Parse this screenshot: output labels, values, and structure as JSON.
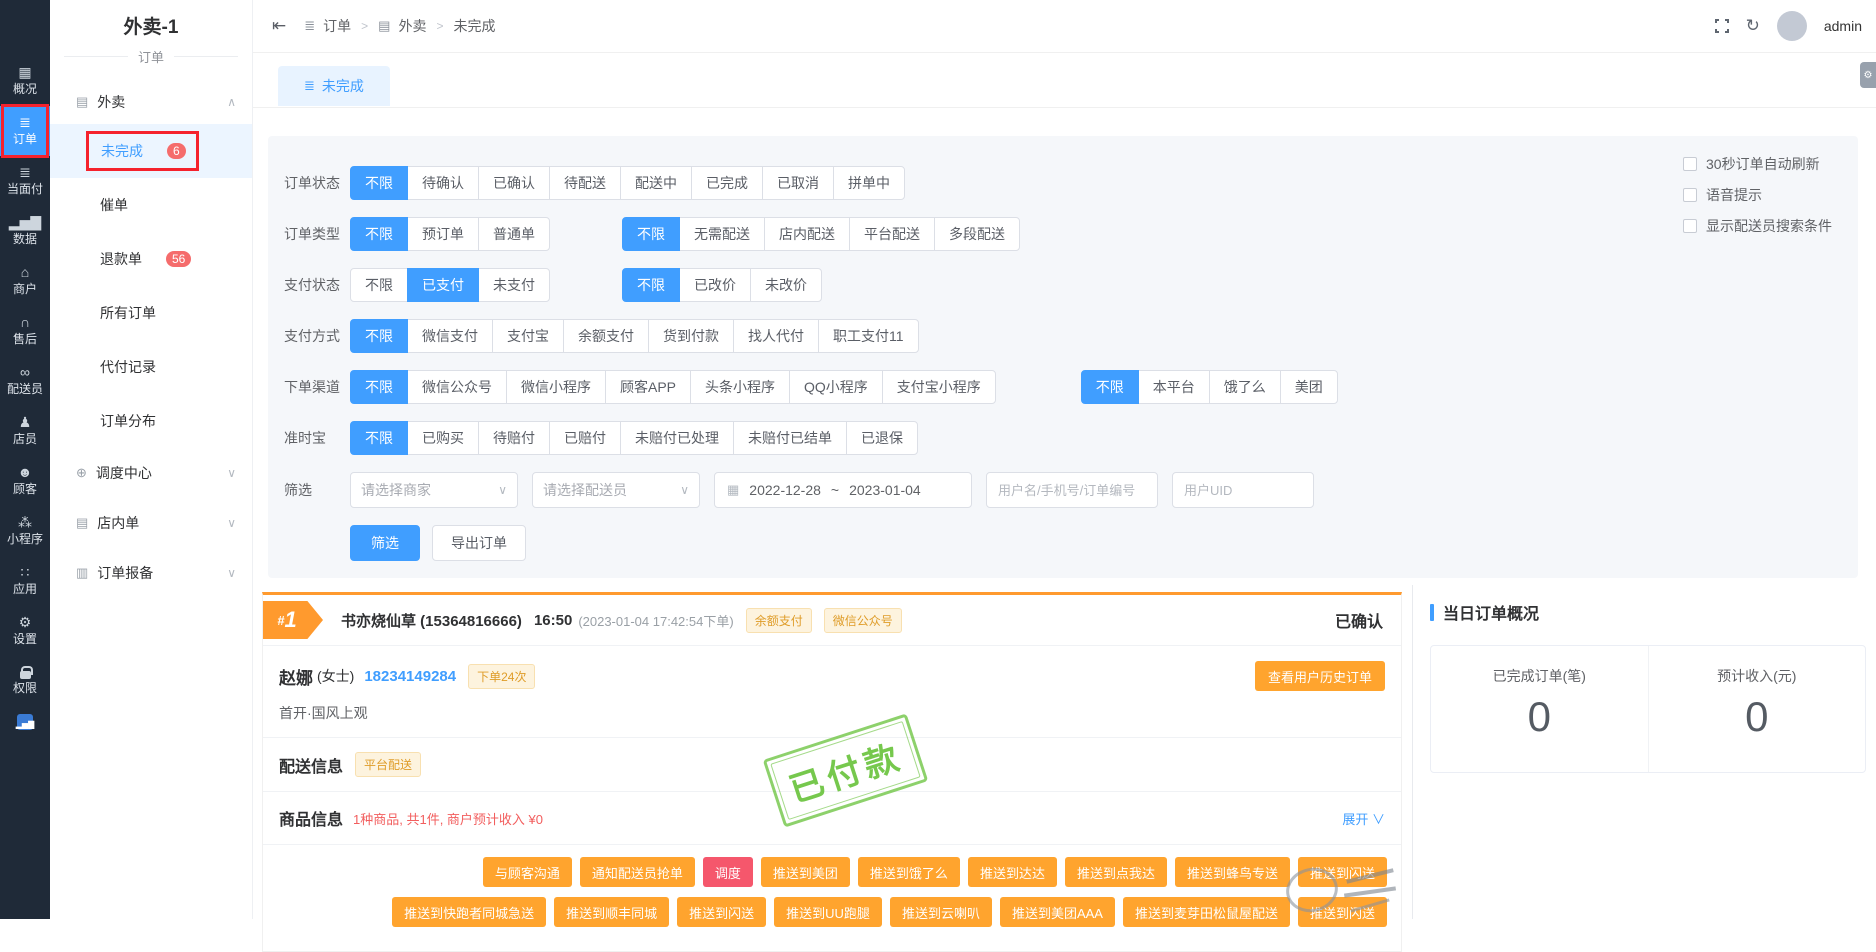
{
  "app": {
    "title": "外卖-1",
    "subtitle": "订单",
    "user": "admin"
  },
  "iconbar": [
    {
      "icon": "grid-icon",
      "label": "概况"
    },
    {
      "icon": "list-icon",
      "label": "订单",
      "active": true,
      "annotated": true
    },
    {
      "icon": "list-icon",
      "label": "当面付"
    },
    {
      "icon": "chart-icon",
      "label": "数据"
    },
    {
      "icon": "shop-icon",
      "label": "商户"
    },
    {
      "icon": "headset-icon",
      "label": "售后"
    },
    {
      "icon": "scooter-icon",
      "label": "配送员"
    },
    {
      "icon": "person-icon",
      "label": "店员"
    },
    {
      "icon": "customer-icon",
      "label": "顾客"
    },
    {
      "icon": "wechat-icon",
      "label": "小程序"
    },
    {
      "icon": "apps-icon",
      "label": "应用"
    },
    {
      "icon": "gear-icon",
      "label": "设置"
    },
    {
      "icon": "lock-icon",
      "label": "权限"
    },
    {
      "icon": "mini-chart-icon",
      "label": ""
    }
  ],
  "sidebar": {
    "section": {
      "label": "外卖",
      "icon": "document-icon"
    },
    "items": [
      {
        "label": "未完成",
        "badge": "6",
        "active": true,
        "annotated": true
      },
      {
        "label": "催单"
      },
      {
        "label": "退款单",
        "badge": "56"
      },
      {
        "label": "所有订单"
      },
      {
        "label": "代付记录"
      },
      {
        "label": "订单分布"
      }
    ],
    "groups": [
      {
        "label": "调度中心",
        "icon": "target-icon"
      },
      {
        "label": "店内单",
        "icon": "document-icon"
      },
      {
        "label": "订单报备",
        "icon": "report-icon"
      }
    ]
  },
  "breadcrumb": [
    {
      "label": "订单",
      "icon": "list-icon"
    },
    {
      "label": "外卖",
      "icon": "document-icon"
    },
    {
      "label": "未完成"
    }
  ],
  "tab": {
    "label": "未完成"
  },
  "options": [
    {
      "label": "30秒订单自动刷新",
      "checked": false
    },
    {
      "label": "语音提示",
      "checked": false
    },
    {
      "label": "显示配送员搜索条件",
      "checked": false
    }
  ],
  "filter_rows": [
    {
      "label": "订单状态",
      "groups": [
        {
          "selected": 0,
          "gap": "",
          "options": [
            "不限",
            "待确认",
            "已确认",
            "待配送",
            "配送中",
            "已完成",
            "已取消",
            "拼单中"
          ]
        }
      ]
    },
    {
      "label": "订单类型",
      "groups": [
        {
          "selected": 0,
          "gap": "",
          "options": [
            "不限",
            "预订单",
            "普通单"
          ]
        },
        {
          "selected": 0,
          "gap": "gap72",
          "options": [
            "不限",
            "无需配送",
            "店内配送",
            "平台配送",
            "多段配送"
          ]
        }
      ]
    },
    {
      "label": "支付状态",
      "groups": [
        {
          "selected": 1,
          "gap": "",
          "options": [
            "不限",
            "已支付",
            "未支付"
          ]
        },
        {
          "selected": 0,
          "gap": "gap72",
          "options": [
            "不限",
            "已改价",
            "未改价"
          ]
        }
      ]
    },
    {
      "label": "支付方式",
      "groups": [
        {
          "selected": 0,
          "gap": "",
          "options": [
            "不限",
            "微信支付",
            "支付宝",
            "余额支付",
            "货到付款",
            "找人代付",
            "职工支付11"
          ]
        }
      ]
    },
    {
      "label": "下单渠道",
      "groups": [
        {
          "selected": 0,
          "gap": "",
          "options": [
            "不限",
            "微信公众号",
            "微信小程序",
            "顾客APP",
            "头条小程序",
            "QQ小程序",
            "支付宝小程序"
          ]
        },
        {
          "selected": 0,
          "gap": "gap85",
          "options": [
            "不限",
            "本平台",
            "饿了么",
            "美团"
          ]
        }
      ]
    },
    {
      "label": "准时宝",
      "groups": [
        {
          "selected": 0,
          "gap": "",
          "options": [
            "不限",
            "已购买",
            "待赔付",
            "已赔付",
            "未赔付已处理",
            "未赔付已结单",
            "已退保"
          ]
        }
      ]
    }
  ],
  "filter_form": {
    "label": "筛选",
    "merchant_placeholder": "请选择商家",
    "courier_placeholder": "请选择配送员",
    "date_start": "2022-12-28",
    "date_separator": "~",
    "date_end": "2023-01-04",
    "keyword_placeholder": "用户名/手机号/订单编号",
    "uid_placeholder": "用户UID",
    "submit_label": "筛选",
    "export_label": "导出订单"
  },
  "order": {
    "index_hash": "#",
    "index_num": "1",
    "store_name": "书亦烧仙草 (15364816666)",
    "time": "16:50",
    "placed_at": "(2023-01-04 17:42:54下单)",
    "tags": [
      "余额支付",
      "微信公众号"
    ],
    "status": "已确认",
    "customer": {
      "name": "赵娜",
      "gender": "(女士)",
      "phone": "18234149284",
      "order_count_tag": "下单24次",
      "history_button": "查看用户历史订单",
      "address": "首开·国风上观"
    },
    "delivery": {
      "title": "配送信息",
      "tag": "平台配送"
    },
    "goods": {
      "title": "商品信息",
      "summary": "1种商品, 共1件, 商户预计收入 ¥0",
      "expand_label": "展开",
      "expand_caret": "∨"
    },
    "paid_stamp": "已付款",
    "actions_row1": [
      {
        "label": "与顾客沟通"
      },
      {
        "label": "通知配送员抢单"
      },
      {
        "label": "调度",
        "style": "danger"
      },
      {
        "label": "推送到美团"
      },
      {
        "label": "推送到饿了么"
      },
      {
        "label": "推送到达达"
      },
      {
        "label": "推送到点我达"
      },
      {
        "label": "推送到蜂鸟专送"
      },
      {
        "label": "推送到闪送"
      }
    ],
    "actions_row2": [
      {
        "label": "推送到快跑者同城急送"
      },
      {
        "label": "推送到顺丰同城"
      },
      {
        "label": "推送到闪送"
      },
      {
        "label": "推送到UU跑腿"
      },
      {
        "label": "推送到云喇叭"
      },
      {
        "label": "推送到美团AAA"
      },
      {
        "label": "推送到麦芽田松鼠屋配送"
      },
      {
        "label": "推送到闪送"
      }
    ]
  },
  "summary": {
    "title": "当日订单概况",
    "metrics": [
      {
        "label": "已完成订单(笔)",
        "value": "0"
      },
      {
        "label": "预计收入(元)",
        "value": "0"
      }
    ]
  },
  "colors": {
    "accent": "#409eff",
    "orange_button": "#ffa42e",
    "danger_button": "#f5576c",
    "badge_red": "#f56c6c",
    "tag_text": "#e6a23c",
    "stamp_green": "#67c23a",
    "annotation_red": "#f5222d",
    "sidebar_dark": "#1f2a38"
  }
}
